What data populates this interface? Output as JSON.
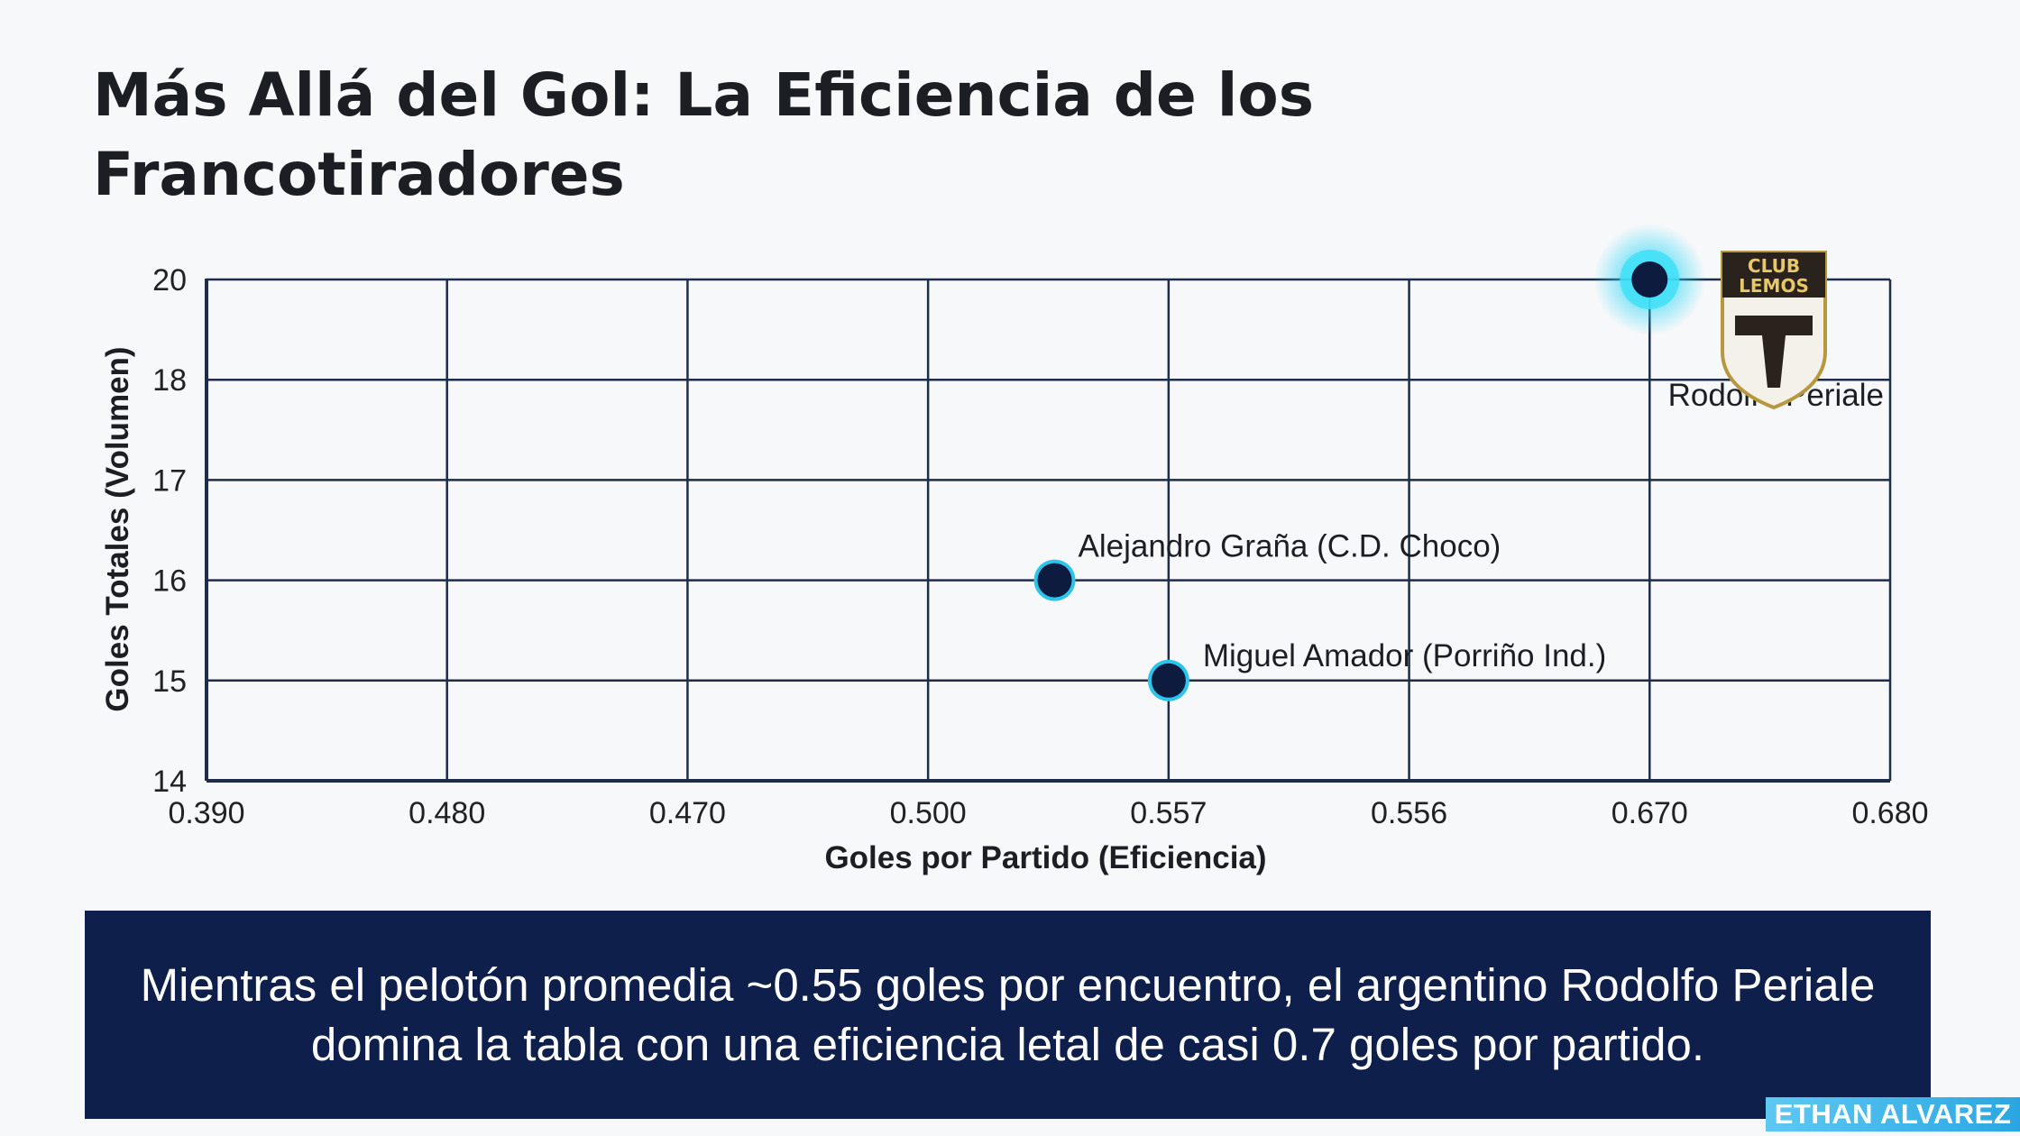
{
  "title": "Más Allá del Gol: La Eficiencia de los Francotiradores",
  "chart_data": {
    "type": "scatter",
    "title": "Más Allá del Gol: La Eficiencia de los Francotiradores",
    "xlabel": "Goles por Partido (Eficiencia)",
    "ylabel": "Goles Totales (Volumen)",
    "x_ticks": [
      "0.390",
      "0.480",
      "0.470",
      "0.500",
      "0.557",
      "0.556",
      "0.670",
      "0.680"
    ],
    "y_ticks": [
      "14",
      "15",
      "16",
      "17",
      "18",
      "20"
    ],
    "grid": true,
    "points": [
      {
        "label": "Rodolfo Periale",
        "x": 0.67,
        "y": 20,
        "highlight": true
      },
      {
        "label": "Alejandro Graña (C.D. Choco)",
        "x": 0.53,
        "y": 16,
        "highlight": false
      },
      {
        "label": "Miguel Amador (Porriño Ind.)",
        "x": 0.557,
        "y": 15,
        "highlight": false
      }
    ]
  },
  "crest": {
    "line1": "CLUB",
    "line2": "LEMOS"
  },
  "callout": "Mientras el pelotón promedia ~0.55 goles por encuentro, el argentino Rodolfo Periale domina la tabla con una eficiencia letal de casi 0.7 goles por partido.",
  "credit": "ETHAN ALVAREZ",
  "colors": {
    "background": "#f7f8fa",
    "grid": "#1f2d4a",
    "point_fill": "#0d1b3e",
    "point_ring": "#2cc4ec",
    "callout_bg": "#0d1f4a",
    "credit_bg": "#3bb4ea"
  }
}
